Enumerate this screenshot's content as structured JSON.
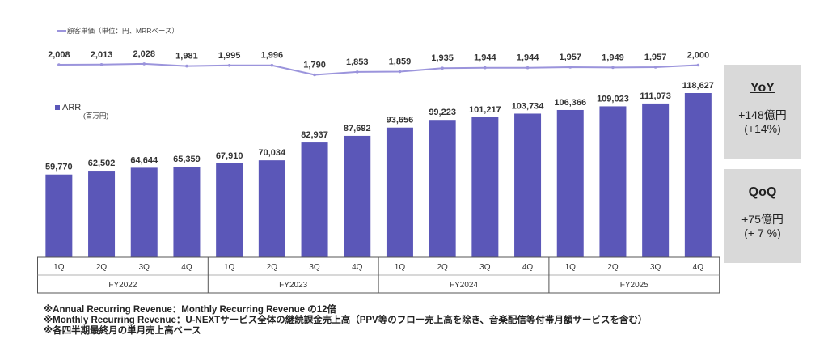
{
  "chart_data": {
    "type": "bar+line",
    "categories": [
      "1Q",
      "2Q",
      "3Q",
      "4Q",
      "1Q",
      "2Q",
      "3Q",
      "4Q",
      "1Q",
      "2Q",
      "3Q",
      "4Q",
      "1Q",
      "2Q",
      "3Q",
      "4Q"
    ],
    "groups": [
      "FY2022",
      "FY2023",
      "FY2024",
      "FY2025"
    ],
    "bar_series": {
      "name": "ARR",
      "unit": "(百万円)",
      "color": "#5b57b8",
      "values": [
        59770,
        62502,
        64644,
        65359,
        67910,
        70034,
        82937,
        87692,
        93656,
        99223,
        101217,
        103734,
        106366,
        109023,
        111073,
        118627
      ]
    },
    "line_series": {
      "name": "顧客単価（単位：円、MRRベース）",
      "color": "#9b94dc",
      "values": [
        2008,
        2013,
        2028,
        1981,
        1995,
        1996,
        1790,
        1853,
        1859,
        1935,
        1944,
        1944,
        1957,
        1949,
        1957,
        2000
      ]
    }
  },
  "yoy": {
    "title": "YoY",
    "value": "+148億円",
    "pct": "(+14%)"
  },
  "qoq": {
    "title": "QoQ",
    "value": "+75億円",
    "pct": "(+ 7 %)"
  },
  "notes": [
    "※Annual Recurring Revenue：Monthly Recurring Revenue の12倍",
    "※Monthly Recurring Revenue：U-NEXTサービス全体の継続課金売上高（PPV等のフロー売上高を除き、音楽配信等付帯月額サービスを含む）",
    "※各四半期最終月の単月売上高ベース"
  ]
}
